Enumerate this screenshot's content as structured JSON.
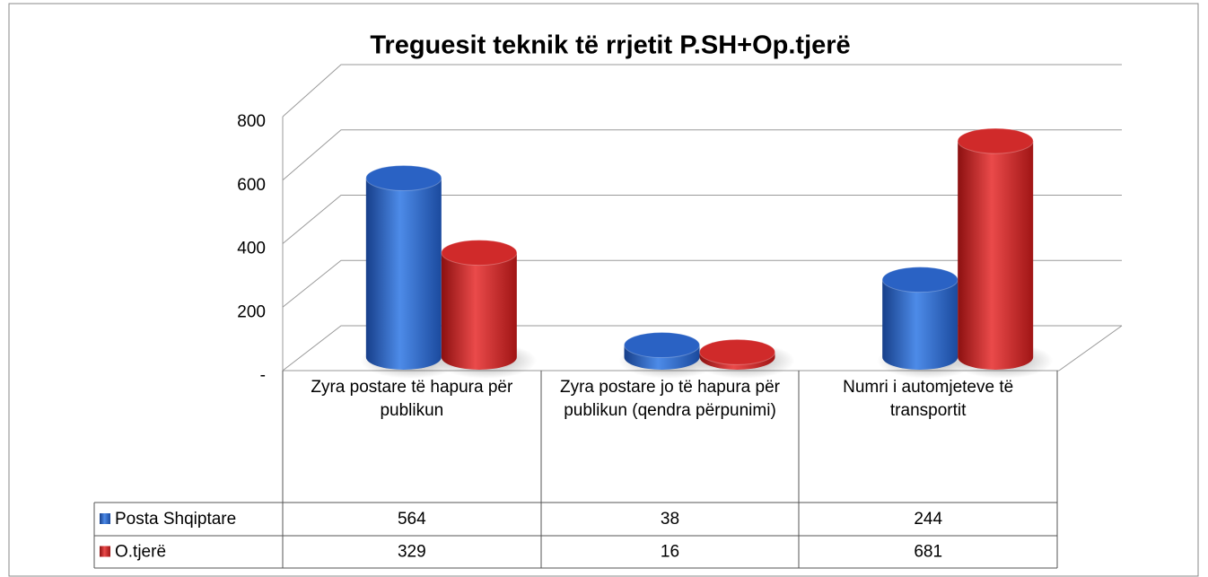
{
  "chart_data": {
    "type": "bar3d",
    "title": "Treguesit teknik të rrjetit P.SH+Op.tjerë",
    "categories": [
      "Zyra postare të hapura për publikun",
      "Zyra postare jo të hapura për publikun (qendra përpunimi)",
      "Numri i automjeteve të transportit"
    ],
    "series": [
      {
        "name": "Posta Shqiptare",
        "color": "#2a62c4",
        "values": [
          564,
          38,
          244
        ]
      },
      {
        "name": "O.tjerë",
        "color": "#d02a2a",
        "values": [
          329,
          16,
          681
        ]
      }
    ],
    "ylim": [
      0,
      800
    ],
    "yticks": [
      {
        "value": 0,
        "label": "-"
      },
      200,
      400,
      600,
      800
    ],
    "grid": true
  }
}
